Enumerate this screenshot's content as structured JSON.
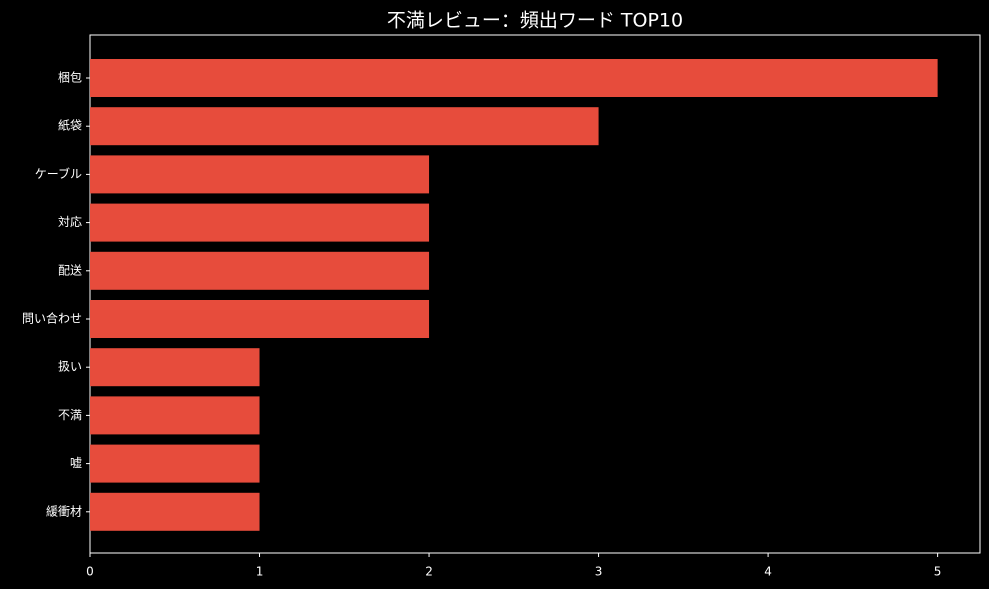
{
  "chart_data": {
    "type": "barh",
    "title": "不満レビュー：頻出ワード TOP10",
    "categories": [
      "梱包",
      "紙袋",
      "ケーブル",
      "対応",
      "配送",
      "問い合わせ",
      "扱い",
      "不満",
      "嘘",
      "緩衝材"
    ],
    "values": [
      5,
      3,
      2,
      2,
      2,
      2,
      1,
      1,
      1,
      1
    ],
    "color": "#e74c3c",
    "xlim": [
      0,
      5.25
    ],
    "xticks": [
      0,
      1,
      2,
      3,
      4,
      5
    ],
    "grid": false
  }
}
